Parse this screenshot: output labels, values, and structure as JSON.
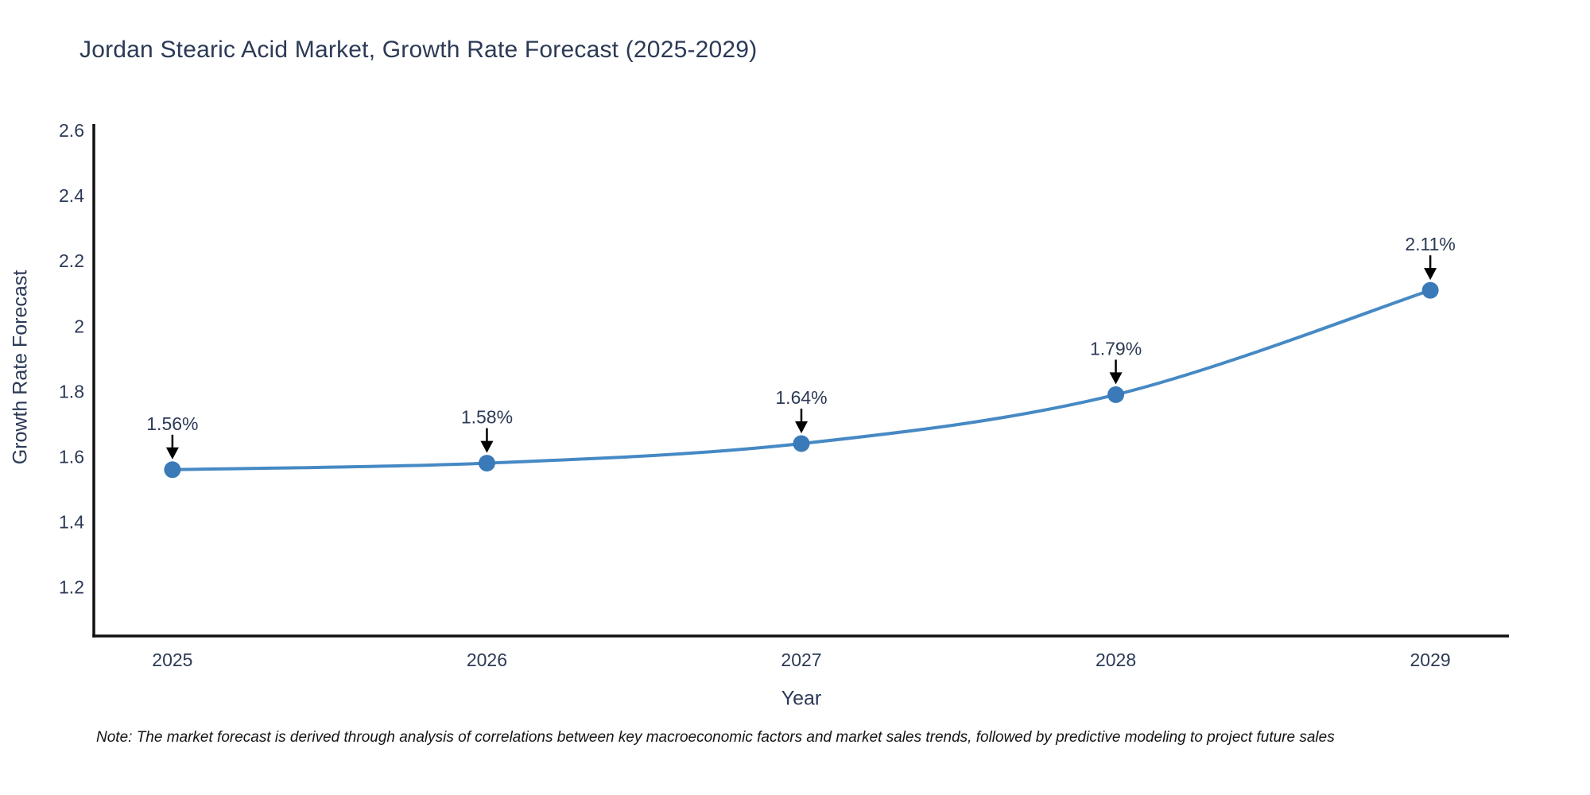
{
  "title": {
    "text": "Jordan Stearic Acid Market, Growth Rate Forecast (2025-2029)"
  },
  "note": {
    "text": "Note: The market forecast is derived through analysis of correlations between key macroeconomic factors and market sales trends, followed by predictive modeling to project future sales"
  },
  "chart_data": {
    "type": "line",
    "title": "Jordan Stearic Acid Market, Growth Rate Forecast (2025-2029)",
    "xlabel": "Year",
    "ylabel": "Growth Rate Forecast",
    "categories": [
      2025,
      2026,
      2027,
      2028,
      2029
    ],
    "values": [
      1.56,
      1.58,
      1.64,
      1.79,
      2.11
    ],
    "point_labels": [
      "1.56%",
      "1.58%",
      "1.64%",
      "1.79%",
      "2.11%"
    ],
    "yticks": [
      1.2,
      1.4,
      1.6,
      1.8,
      2,
      2.2,
      2.4,
      2.6
    ],
    "ytick_labels": [
      "1.2",
      "1.4",
      "1.6",
      "1.8",
      "2",
      "2.2",
      "2.4",
      "2.6"
    ],
    "ylim": [
      1.05,
      2.615
    ],
    "xlim": [
      2024.75,
      2029.25
    ],
    "grid": false,
    "legend": "none",
    "line_shape": "spline",
    "colors": {
      "line": "#4689c4",
      "marker": "#3a7ab8",
      "axis": "#111111",
      "text": "#2c3a56",
      "annotation_arrow": "#000000"
    }
  }
}
